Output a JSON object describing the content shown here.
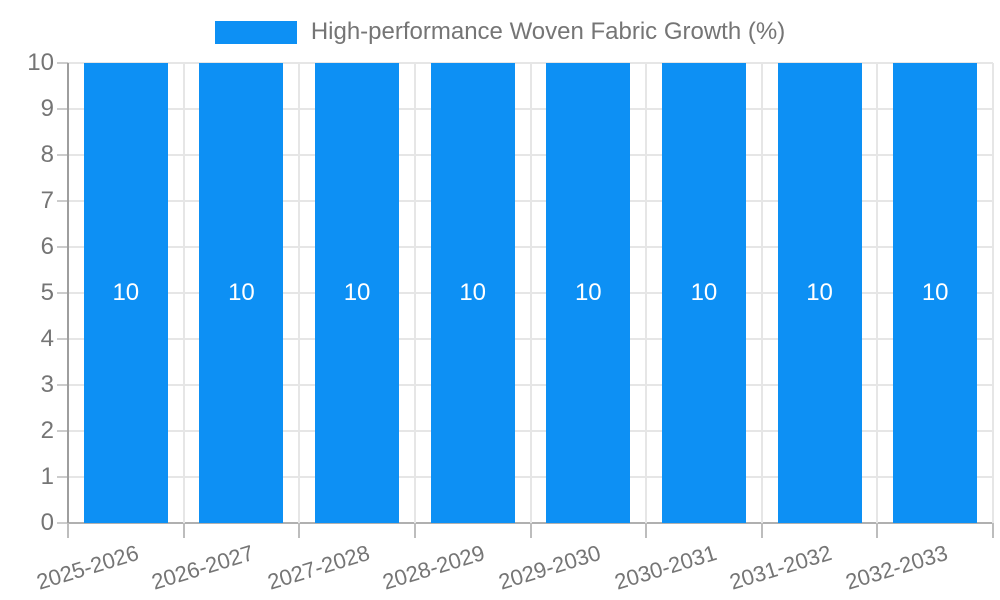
{
  "colors": {
    "bar": "#0d90f4",
    "grid": "#e6e6e6",
    "baseline": "#b0b0b0",
    "axis_line": "#9e9e9e",
    "axis_text": "#757575",
    "value_label": "#ffffff",
    "background": "#ffffff"
  },
  "chart_data": {
    "type": "bar",
    "title": "",
    "categories": [
      "2025-2026",
      "2026-2027",
      "2027-2028",
      "2028-2029",
      "2029-2030",
      "2030-2031",
      "2031-2032",
      "2032-2033"
    ],
    "series": [
      {
        "name": "High-performance Woven Fabric Growth (%)",
        "color": "#0d90f4",
        "values": [
          10,
          10,
          10,
          10,
          10,
          10,
          10,
          10
        ]
      }
    ],
    "bar_value_labels": [
      "10",
      "10",
      "10",
      "10",
      "10",
      "10",
      "10",
      "10"
    ],
    "xlabel": "",
    "ylabel": "",
    "ylim": [
      0,
      10
    ],
    "yticks": [
      0,
      1,
      2,
      3,
      4,
      5,
      6,
      7,
      8,
      9,
      10
    ],
    "grid": true,
    "legend_position": "top"
  }
}
